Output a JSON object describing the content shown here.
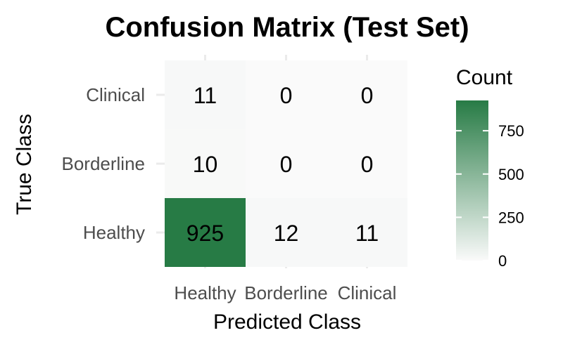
{
  "chart_data": {
    "type": "heatmap",
    "title": "Confusion Matrix (Test Set)",
    "xlabel": "Predicted Class",
    "ylabel": "True Class",
    "x_categories": [
      "Healthy",
      "Borderline",
      "Clinical"
    ],
    "y_categories": [
      "Healthy",
      "Borderline",
      "Clinical"
    ],
    "cells": [
      {
        "true": "Healthy",
        "predicted": "Healthy",
        "value": 925
      },
      {
        "true": "Healthy",
        "predicted": "Borderline",
        "value": 12
      },
      {
        "true": "Healthy",
        "predicted": "Clinical",
        "value": 11
      },
      {
        "true": "Borderline",
        "predicted": "Healthy",
        "value": 10
      },
      {
        "true": "Borderline",
        "predicted": "Borderline",
        "value": 0
      },
      {
        "true": "Borderline",
        "predicted": "Clinical",
        "value": 0
      },
      {
        "true": "Clinical",
        "predicted": "Healthy",
        "value": 11
      },
      {
        "true": "Clinical",
        "predicted": "Borderline",
        "value": 0
      },
      {
        "true": "Clinical",
        "predicted": "Clinical",
        "value": 0
      }
    ],
    "legend": {
      "title": "Count",
      "ticks": [
        0,
        250,
        500,
        750
      ],
      "range": [
        0,
        925
      ]
    },
    "colors": {
      "low": "#fafafa",
      "high": "#277b45"
    }
  }
}
